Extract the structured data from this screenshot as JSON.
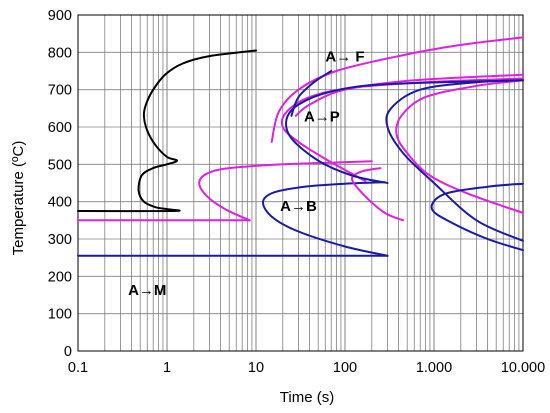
{
  "chart_data": {
    "type": "line",
    "title": "",
    "xlabel": "Time (s)",
    "ylabel": "Temperature (ºC)",
    "x_scale": "log",
    "xlim": [
      0.1,
      10000
    ],
    "ylim": [
      0,
      900
    ],
    "grid": true,
    "legend": "none",
    "x_ticks": [
      {
        "value": 0.1,
        "label": "0.1"
      },
      {
        "value": 1,
        "label": "1"
      },
      {
        "value": 10,
        "label": "10"
      },
      {
        "value": 100,
        "label": "100"
      },
      {
        "value": 1000,
        "label": "1.000"
      },
      {
        "value": 10000,
        "label": "10.000"
      }
    ],
    "y_ticks": [
      {
        "value": 0,
        "label": "0"
      },
      {
        "value": 100,
        "label": "100"
      },
      {
        "value": 200,
        "label": "200"
      },
      {
        "value": 300,
        "label": "300"
      },
      {
        "value": 400,
        "label": "400"
      },
      {
        "value": 500,
        "label": "500"
      },
      {
        "value": 600,
        "label": "600"
      },
      {
        "value": 700,
        "label": "700"
      },
      {
        "value": 800,
        "label": "800"
      },
      {
        "value": 900,
        "label": "900"
      }
    ],
    "colors": {
      "black": "#000000",
      "magenta": "#e020e0",
      "blue": "#1a1aa8",
      "grid": "#808080"
    },
    "annotations": [
      {
        "text": "A→ F",
        "x": 100,
        "y": 775
      },
      {
        "text": "A→P",
        "x": 55,
        "y": 615
      },
      {
        "text": "A→B",
        "x": 30,
        "y": 375
      },
      {
        "text": "A→M",
        "x": 0.6,
        "y": 150
      }
    ],
    "series": [
      {
        "color": "black",
        "points": [
          [
            0.1,
            375
          ],
          [
            1.2,
            375
          ],
          [
            1.0,
            380
          ],
          [
            0.75,
            385
          ],
          [
            0.55,
            400
          ],
          [
            0.48,
            430
          ],
          [
            0.52,
            470
          ],
          [
            0.7,
            490
          ],
          [
            1.0,
            500
          ],
          [
            1.3,
            510
          ],
          [
            1.0,
            520
          ],
          [
            0.75,
            550
          ],
          [
            0.6,
            590
          ],
          [
            0.55,
            630
          ],
          [
            0.58,
            660
          ],
          [
            0.7,
            700
          ],
          [
            0.95,
            740
          ],
          [
            1.5,
            770
          ],
          [
            3,
            790
          ],
          [
            10,
            805
          ]
        ]
      },
      {
        "color": "magenta",
        "points": [
          [
            0.1,
            350
          ],
          [
            8.5,
            350
          ]
        ]
      },
      {
        "color": "magenta",
        "points": [
          [
            8.5,
            350
          ],
          [
            4.5,
            380
          ],
          [
            2.8,
            415
          ],
          [
            2.3,
            450
          ],
          [
            2.8,
            475
          ],
          [
            5,
            490
          ],
          [
            20,
            500
          ],
          [
            80,
            505
          ],
          [
            200,
            508
          ]
        ]
      },
      {
        "color": "blue",
        "points": [
          [
            0.1,
            255
          ],
          [
            300,
            255
          ]
        ]
      },
      {
        "color": "blue",
        "points": [
          [
            300,
            255
          ],
          [
            100,
            280
          ],
          [
            30,
            320
          ],
          [
            15,
            360
          ],
          [
            12,
            400
          ],
          [
            16,
            425
          ],
          [
            35,
            440
          ],
          [
            100,
            448
          ],
          [
            280,
            452
          ]
        ]
      },
      {
        "color": "magenta",
        "points": [
          [
            450,
            350
          ],
          [
            280,
            370
          ],
          [
            160,
            420
          ],
          [
            120,
            460
          ],
          [
            150,
            480
          ],
          [
            250,
            490
          ]
        ]
      },
      {
        "color": "magenta",
        "points": [
          [
            15,
            560
          ],
          [
            18,
            640
          ],
          [
            30,
            700
          ],
          [
            80,
            750
          ],
          [
            400,
            790
          ],
          [
            2000,
            820
          ],
          [
            10000,
            840
          ]
        ]
      },
      {
        "color": "magenta",
        "points": [
          [
            170,
            455
          ],
          [
            65,
            510
          ],
          [
            30,
            560
          ],
          [
            20,
            600
          ],
          [
            22,
            640
          ],
          [
            40,
            680
          ],
          [
            120,
            705
          ],
          [
            800,
            720
          ],
          [
            10000,
            730
          ]
        ]
      },
      {
        "color": "magenta",
        "points": [
          [
            28,
            630
          ],
          [
            40,
            660
          ],
          [
            100,
            700
          ],
          [
            600,
            725
          ],
          [
            10000,
            740
          ]
        ]
      },
      {
        "color": "magenta",
        "points": [
          [
            10000,
            370
          ],
          [
            2500,
            420
          ],
          [
            900,
            470
          ],
          [
            500,
            530
          ],
          [
            380,
            580
          ],
          [
            430,
            630
          ],
          [
            800,
            680
          ],
          [
            3000,
            710
          ],
          [
            10000,
            725
          ]
        ]
      },
      {
        "color": "blue",
        "points": [
          [
            25,
            630
          ],
          [
            30,
            680
          ],
          [
            45,
            720
          ],
          [
            70,
            750
          ]
        ]
      },
      {
        "color": "blue",
        "points": [
          [
            300,
            450
          ],
          [
            120,
            470
          ],
          [
            50,
            510
          ],
          [
            25,
            570
          ],
          [
            22,
            620
          ],
          [
            30,
            660
          ],
          [
            70,
            695
          ],
          [
            300,
            715
          ],
          [
            10000,
            725
          ]
        ]
      },
      {
        "color": "blue",
        "points": [
          [
            10000,
            270
          ],
          [
            4000,
            300
          ],
          [
            1700,
            340
          ],
          [
            950,
            380
          ],
          [
            1300,
            420
          ],
          [
            4000,
            440
          ],
          [
            10000,
            448
          ]
        ]
      },
      {
        "color": "blue",
        "points": [
          [
            10000,
            295
          ],
          [
            3000,
            350
          ],
          [
            1000,
            450
          ],
          [
            450,
            530
          ],
          [
            300,
            600
          ],
          [
            330,
            650
          ],
          [
            700,
            700
          ],
          [
            3000,
            720
          ],
          [
            10000,
            725
          ]
        ]
      }
    ]
  }
}
